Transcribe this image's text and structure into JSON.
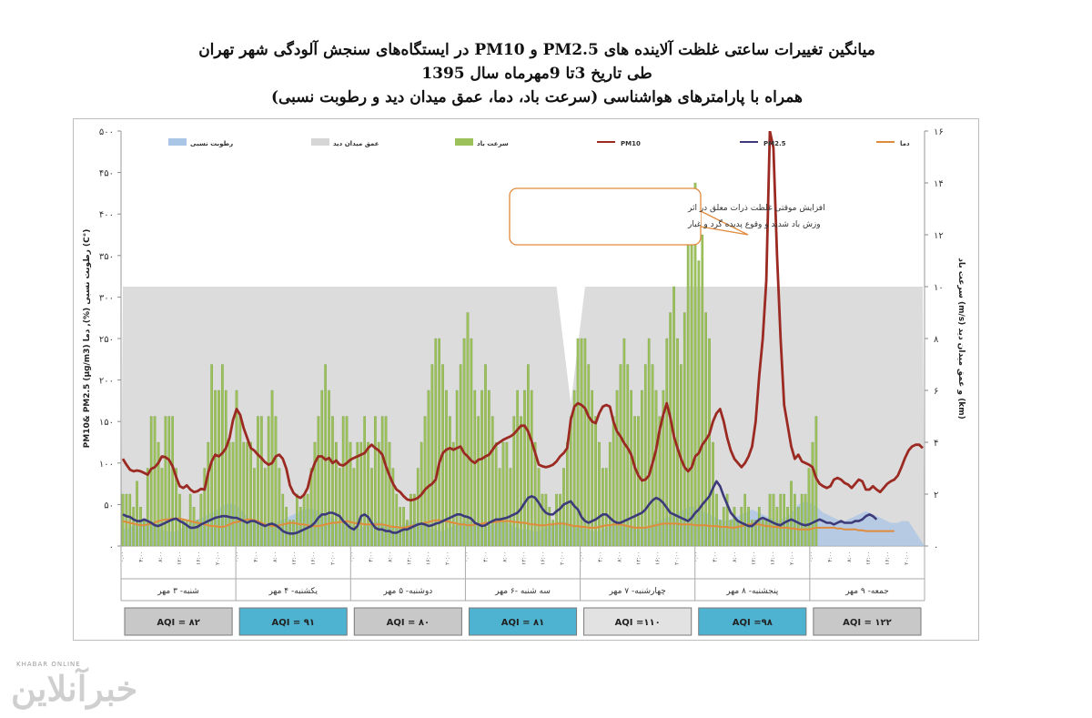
{
  "title": {
    "line1": "میانگین تغییرات ساعتی غلظت آلاینده های PM2.5 و PM10 در ایستگاه‌های سنجش آلودگی شهر تهران",
    "line2": "طی تاریخ 3تا  9مهرماه سال 1395",
    "line3": "همراه با پارامترهای هواشناسی (سرعت باد، دما، عمق میدان دید و رطوبت نسبی)"
  },
  "watermark": {
    "small": "KHABAR ONLINE",
    "big": "خبرآنلاین"
  },
  "colors": {
    "pm10": "#9b2a22",
    "pm25": "#3d3a7a",
    "temp": "#e08a3c",
    "wind": "#9cc05a",
    "wind_edge": "#6f9a3a",
    "visibility": "#dcdcdc",
    "humidity": "#a9c6e6",
    "aqi_blue": "#4db3d0",
    "aqi_gray": "#c8c8c8",
    "aqi_light": "#e2e2e2"
  },
  "chart_data": {
    "type": "combo",
    "left_axis": {
      "label": "PM10& PM2.5 (µg/m3) رطوبت نسبی (%), دما (C°)",
      "ylim": [
        0,
        500
      ],
      "ticks": [
        "۰",
        "۵۰",
        "۱۰۰",
        "۱۵۰",
        "۲۰۰",
        "۲۵۰",
        "۳۰۰",
        "۳۵۰",
        "۴۰۰",
        "۴۵۰",
        "۵۰۰"
      ]
    },
    "right_axis": {
      "label": "سرعت باد (m/s) و عمق میدان دید (km)",
      "ylim": [
        0,
        16
      ],
      "ticks": [
        "۰",
        "۲",
        "۴",
        "۶",
        "۸",
        "۱۰",
        "۱۲",
        "۱۴",
        "۱۶"
      ]
    },
    "hour_ticks": [
      "۰:۰۰",
      "۴:۰۰",
      "۸:۰۰",
      "۱۲:۰۰",
      "۱۶:۰۰",
      "۲۰:۰۰"
    ],
    "legend": [
      "رطوبت نسبی",
      "عمق میدان دید",
      "سرعت باد",
      "PM10",
      "PM2.5",
      "دما"
    ],
    "days": [
      {
        "label": "شنبه- ۳ مهر",
        "aqi": "AQI = ۸۲",
        "aqi_color": "gray"
      },
      {
        "label": "یکشنبه- ۴ مهر",
        "aqi": "AQI = ۹۱",
        "aqi_color": "blue"
      },
      {
        "label": "دوشنبه- ۵ مهر",
        "aqi": "AQI = ۸۰",
        "aqi_color": "gray"
      },
      {
        "label": "سه شنبه -۶ مهر",
        "aqi": "AQI = ۸۱",
        "aqi_color": "blue"
      },
      {
        "label": "چهارشنبه- ۷ مهر",
        "aqi": "AQI =۱۱۰",
        "aqi_color": "light"
      },
      {
        "label": "پنجشنبه- ۸ مهر",
        "aqi": "AQI =۹۸",
        "aqi_color": "blue"
      },
      {
        "label": "جمعه- ۹ مهر",
        "aqi": "AQI = ۱۲۲",
        "aqi_color": "gray"
      }
    ],
    "annotation": {
      "line1": "افزایش موقتی غلظت ذرات معلق در اثر",
      "line2": "وزش باد شدید و وقوع پدیده گرد و غبار"
    },
    "pm10": [
      105,
      98,
      92,
      90,
      91,
      90,
      88,
      86,
      93,
      95,
      100,
      108,
      107,
      104,
      96,
      83,
      72,
      70,
      73,
      68,
      65,
      66,
      69,
      68,
      88,
      102,
      110,
      108,
      112,
      118,
      130,
      152,
      165,
      158,
      142,
      130,
      118,
      115,
      110,
      106,
      101,
      98,
      100,
      108,
      110,
      105,
      93,
      73,
      64,
      60,
      58,
      62,
      70,
      88,
      100,
      108,
      108,
      104,
      106,
      100,
      103,
      98,
      97,
      100,
      104,
      106,
      108,
      110,
      112,
      118,
      122,
      118,
      115,
      110,
      96,
      85,
      75,
      68,
      65,
      60,
      56,
      55,
      56,
      58,
      62,
      68,
      72,
      75,
      80,
      100,
      112,
      116,
      118,
      116,
      118,
      120,
      112,
      108,
      103,
      100,
      104,
      105,
      108,
      110,
      116,
      122,
      125,
      128,
      130,
      132,
      135,
      140,
      145,
      145,
      138,
      126,
      112,
      98,
      96,
      95,
      96,
      98,
      102,
      108,
      112,
      118,
      152,
      168,
      172,
      170,
      166,
      156,
      150,
      148,
      160,
      168,
      170,
      168,
      150,
      138,
      132,
      124,
      118,
      110,
      95,
      85,
      79,
      80,
      85,
      100,
      116,
      140,
      158,
      172,
      155,
      132,
      118,
      105,
      95,
      90,
      95,
      108,
      112,
      122,
      128,
      135,
      150,
      160,
      165,
      150,
      130,
      115,
      105,
      100,
      95,
      100,
      108,
      120,
      150,
      205,
      250,
      320,
      500,
      480,
      350,
      250,
      170,
      145,
      120,
      105,
      110,
      102,
      100,
      98,
      95,
      82,
      75,
      72,
      70,
      72,
      80,
      82,
      80,
      76,
      74,
      70,
      75,
      80,
      78,
      68,
      68,
      72,
      68,
      65,
      70,
      75,
      78,
      80,
      85,
      95,
      106,
      115,
      120,
      122,
      122,
      118
    ],
    "pm25": [
      38,
      36,
      35,
      32,
      30,
      30,
      32,
      30,
      28,
      25,
      24,
      26,
      28,
      30,
      32,
      33,
      30,
      28,
      25,
      22,
      22,
      23,
      26,
      28,
      30,
      32,
      34,
      35,
      36,
      36,
      35,
      34,
      34,
      32,
      30,
      28,
      30,
      30,
      28,
      26,
      24,
      26,
      27,
      25,
      22,
      18,
      16,
      15,
      15,
      16,
      18,
      20,
      22,
      24,
      28,
      34,
      38,
      38,
      40,
      40,
      38,
      36,
      30,
      26,
      22,
      20,
      24,
      36,
      38,
      35,
      28,
      22,
      20,
      20,
      18,
      18,
      16,
      16,
      18,
      20,
      20,
      22,
      24,
      26,
      27,
      26,
      24,
      25,
      27,
      28,
      30,
      32,
      34,
      36,
      38,
      38,
      36,
      35,
      33,
      28,
      26,
      24,
      25,
      28,
      30,
      32,
      32,
      33,
      34,
      36,
      38,
      40,
      45,
      52,
      58,
      60,
      58,
      52,
      45,
      40,
      38,
      38,
      42,
      45,
      50,
      52,
      54,
      48,
      44,
      35,
      30,
      28,
      30,
      32,
      35,
      38,
      38,
      34,
      30,
      28,
      28,
      30,
      32,
      34,
      36,
      38,
      40,
      44,
      50,
      55,
      58,
      56,
      52,
      46,
      40,
      38,
      36,
      34,
      32,
      30,
      34,
      40,
      44,
      50,
      55,
      60,
      70,
      78,
      72,
      60,
      50,
      40,
      35,
      30,
      28,
      26,
      24,
      24,
      28,
      32,
      34,
      32,
      30,
      28,
      26,
      25,
      28,
      30,
      32,
      30,
      28,
      26,
      25,
      26,
      28,
      30,
      32,
      30,
      28,
      28,
      26,
      28,
      30,
      28,
      28,
      28,
      30,
      30,
      32,
      36,
      38,
      36,
      32
    ],
    "temp": [
      30,
      29,
      28,
      27,
      26,
      25,
      25,
      26,
      27,
      28,
      30,
      31,
      32,
      32,
      33,
      33,
      33,
      32,
      31,
      30,
      29,
      28,
      27,
      26,
      25,
      24,
      24,
      23,
      23,
      24,
      26,
      28,
      29,
      30,
      31,
      32,
      32,
      31,
      30,
      28,
      26,
      25,
      24,
      24,
      25,
      26,
      27,
      28,
      28,
      27,
      26,
      26,
      25,
      24,
      24,
      24,
      25,
      26,
      27,
      28,
      28,
      29,
      29,
      30,
      29,
      28,
      27,
      27,
      26,
      26,
      26,
      26,
      26,
      26,
      25,
      24,
      23,
      23,
      22,
      22,
      23,
      24,
      25,
      26,
      27,
      28,
      29,
      30,
      31,
      31,
      30,
      30,
      29,
      28,
      27,
      26,
      26,
      25,
      25,
      26,
      26,
      27,
      28,
      28,
      29,
      29,
      30,
      30,
      30,
      30,
      29,
      29,
      28,
      28,
      27,
      26,
      26,
      25,
      25,
      25,
      26,
      26,
      27,
      27,
      27,
      26,
      25,
      24,
      24,
      23,
      23,
      22,
      22,
      22,
      23,
      24,
      25,
      25,
      26,
      26,
      26,
      25,
      24,
      23,
      22,
      22,
      22,
      22,
      23,
      24,
      25,
      26,
      27,
      27,
      27,
      27,
      27,
      26,
      26,
      26,
      26,
      25,
      25,
      25,
      25,
      24,
      24,
      24,
      23,
      23,
      23,
      22,
      22,
      23,
      24,
      25,
      26,
      26,
      26,
      26,
      25,
      24,
      24,
      23,
      23,
      22,
      22,
      22,
      21,
      21,
      20,
      20,
      20,
      20,
      21,
      22,
      22,
      22,
      22,
      22,
      22,
      21,
      21,
      20,
      20,
      20,
      20,
      19,
      19,
      18,
      18,
      18,
      18,
      18,
      18,
      18,
      18,
      18
    ],
    "humidity": [
      20,
      20,
      22,
      25,
      28,
      30,
      30,
      28,
      26,
      24,
      22,
      20,
      18,
      18,
      17,
      18,
      20,
      22,
      25,
      28,
      30,
      32,
      34,
      35,
      38,
      40,
      42,
      45,
      48,
      50,
      52,
      50,
      48,
      45,
      40,
      35,
      30,
      28,
      26,
      25,
      24,
      24,
      26,
      28,
      30,
      32,
      34,
      36,
      38,
      40,
      42,
      44,
      45,
      45,
      44,
      42,
      40,
      38,
      36,
      34,
      30,
      28,
      26,
      24,
      22,
      20,
      20,
      22,
      24,
      26,
      28,
      30,
      30,
      28,
      26,
      24,
      22,
      22,
      24,
      26,
      28,
      30,
      30,
      28,
      26,
      24,
      22,
      20,
      20,
      18,
      18,
      20,
      22,
      24,
      26,
      28,
      30,
      30,
      28,
      26,
      24,
      22,
      22,
      24,
      26,
      28,
      30,
      30,
      28,
      26,
      24,
      22,
      20,
      20,
      20,
      18,
      18,
      18,
      20,
      22,
      24,
      26,
      28,
      30,
      30,
      28,
      26,
      24,
      22,
      22,
      20,
      20,
      18,
      18,
      18,
      20,
      22,
      24,
      26,
      28,
      28,
      26,
      24,
      22,
      20,
      20,
      20,
      22,
      24,
      26,
      28,
      30,
      32,
      34,
      36,
      38,
      40,
      42,
      44,
      46,
      48,
      46,
      44,
      42,
      40,
      38,
      36,
      34,
      32,
      30,
      30,
      32,
      34,
      36,
      38,
      40,
      42,
      44,
      42,
      40,
      38,
      36,
      34,
      32,
      30,
      32,
      34,
      36,
      40,
      44,
      50,
      52,
      54,
      52,
      50,
      48,
      44,
      40,
      38,
      36,
      34,
      32,
      30,
      30,
      32,
      34,
      36,
      38,
      40,
      42,
      40,
      38,
      36,
      34,
      32,
      30,
      28,
      28,
      28,
      30,
      30,
      30
    ],
    "wind": [
      2,
      2,
      2,
      1.5,
      2.5,
      1.5,
      1,
      3,
      5,
      5,
      4,
      3,
      5,
      5,
      5,
      3,
      2,
      1,
      1,
      2,
      1.5,
      1,
      2,
      3,
      4,
      7,
      6,
      6,
      7,
      6,
      4,
      4,
      6,
      5,
      4,
      4,
      4,
      3,
      5,
      5,
      3,
      5,
      6,
      5,
      3,
      2,
      1.5,
      1,
      1,
      2,
      1.5,
      2,
      2,
      3,
      4,
      5,
      6,
      7,
      6,
      5,
      4,
      3,
      5,
      5,
      4,
      3,
      4,
      4,
      5,
      4,
      3,
      5,
      4,
      5,
      5,
      4,
      3,
      2,
      1.5,
      1.5,
      1,
      2,
      2,
      3,
      4,
      5,
      6,
      7,
      8,
      8,
      7,
      6,
      5,
      4,
      6,
      7,
      8,
      9,
      8,
      6,
      5,
      6,
      7,
      6,
      5,
      4,
      3,
      4,
      4,
      3,
      5,
      6,
      5,
      6,
      7,
      6,
      4,
      3,
      2,
      2,
      1.5,
      1,
      2,
      2,
      3,
      4,
      5,
      6,
      8,
      8,
      8,
      7,
      6,
      5,
      4,
      3,
      3,
      4,
      5,
      6,
      7,
      8,
      7,
      6,
      5,
      5,
      6,
      7,
      8,
      7,
      6,
      5,
      6,
      8,
      9,
      10,
      8,
      7,
      9,
      12,
      13,
      14,
      11,
      12,
      9,
      8,
      4,
      2,
      1,
      1.5,
      2,
      1,
      1.5,
      1,
      1.5,
      2,
      1.5,
      1,
      1,
      1.5,
      1,
      1,
      2,
      2,
      1.5,
      2,
      2,
      1.5,
      2.5,
      2,
      1.5,
      2,
      2,
      3,
      4,
      5
    ]
  }
}
